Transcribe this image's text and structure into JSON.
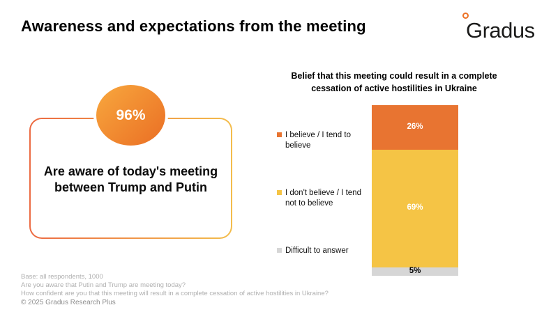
{
  "header": {
    "title": "Awareness and expectations from the meeting",
    "logo": {
      "text": "Gradus",
      "mark": "orange-ring-icon",
      "ring_color": "#ED7226"
    }
  },
  "awareness_card": {
    "stat_value": "96%",
    "description": "Are aware of today's meeting between Trump and Putin",
    "colors": {
      "circle_gradient_start": "#F8A83E",
      "circle_gradient_end": "#EA6E24",
      "border_gradient_start": "#EC6A42",
      "border_gradient_end": "#F3BD4C"
    }
  },
  "chart_data": {
    "type": "bar",
    "stacked": true,
    "orientation": "vertical",
    "title": "Belief that this meeting could result in a complete cessation of active hostilities in Ukraine",
    "title_lines": [
      "Belief that this meeting could result in a complete",
      "cessation of active hostilities in Ukraine"
    ],
    "unit": "%",
    "ylim": [
      0,
      100
    ],
    "legend_position": "left",
    "axes_visible": false,
    "grid": false,
    "segments": [
      {
        "label": "I believe / I tend to believe",
        "value": 26,
        "value_label": "26%",
        "color": "#E87431",
        "value_label_color": "#FFFFFF"
      },
      {
        "label": "I don't believe / I tend not to believe",
        "value": 69,
        "value_label": "69%",
        "color": "#F5C445",
        "value_label_color": "#FFFFFF"
      },
      {
        "label": "Difficult to answer",
        "value": 5,
        "value_label": "5%",
        "color": "#D6D6D6",
        "value_label_color": "#000000"
      }
    ]
  },
  "footer": {
    "lines": [
      "Base: all respondents, 1000",
      "Are you aware that Putin and Trump are meeting today?",
      "How confident are you that this meeting will result in a complete cessation of active hostilities in Ukraine?"
    ],
    "copyright": "© 2025 Gradus Research Plus"
  }
}
